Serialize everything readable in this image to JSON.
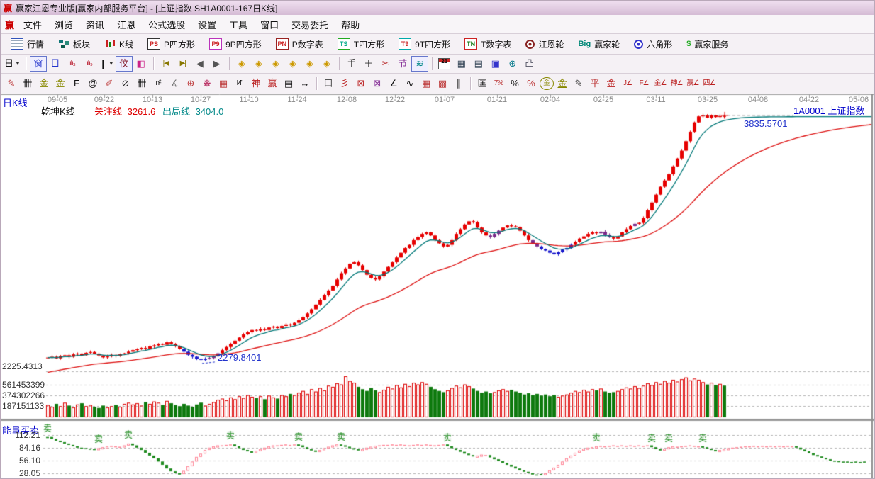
{
  "window": {
    "title": "赢家江恩专业版[赢家内部服务平台] - [上证指数  SH1A0001-167日K线]",
    "logo": "赢"
  },
  "menu": {
    "items": [
      "文件",
      "浏览",
      "资讯",
      "江恩",
      "公式选股",
      "设置",
      "工具",
      "窗口",
      "交易委托",
      "帮助"
    ]
  },
  "toolbar_main": [
    {
      "label": "行情",
      "icon": {
        "name": "quote-grid-icon",
        "kind": "grid"
      }
    },
    {
      "label": "板块",
      "icon": {
        "name": "blocks-icon",
        "kind": "blocks"
      }
    },
    {
      "label": "K线",
      "icon": {
        "name": "kline-icon",
        "kind": "kline"
      }
    },
    {
      "label": "P四方形",
      "icon": {
        "name": "p-square-icon",
        "kind": "badge",
        "text": "PS",
        "color": "#c22",
        "border": "#333"
      }
    },
    {
      "label": "9P四方形",
      "icon": {
        "name": "p9-square-icon",
        "kind": "badge",
        "text": "P9",
        "color": "#c22",
        "border": "#b3b"
      }
    },
    {
      "label": "P数字表",
      "icon": {
        "name": "p-number-icon",
        "kind": "badge",
        "text": "PN",
        "color": "#c22",
        "border": "#922"
      }
    },
    {
      "label": "T四方形",
      "icon": {
        "name": "t-square-icon",
        "kind": "badge",
        "text": "TS",
        "color": "#0a8",
        "border": "#2a2"
      }
    },
    {
      "label": "9T四方形",
      "icon": {
        "name": "t9-square-icon",
        "kind": "badge",
        "text": "T9",
        "color": "#c22",
        "border": "#0aa"
      }
    },
    {
      "label": "T数字表",
      "icon": {
        "name": "t-number-icon",
        "kind": "badge",
        "text": "TN",
        "color": "#171",
        "border": "#c22"
      }
    },
    {
      "label": "江恩轮",
      "icon": {
        "name": "gann-wheel-icon",
        "kind": "ring",
        "color": "#822"
      }
    },
    {
      "label": "赢家轮",
      "icon": {
        "name": "winner-wheel-icon",
        "kind": "text",
        "text": "Big",
        "color": "#087"
      }
    },
    {
      "label": "六角形",
      "icon": {
        "name": "hexagon-icon",
        "kind": "ring",
        "color": "#33c"
      }
    },
    {
      "label": "赢家服务",
      "icon": {
        "name": "service-icon",
        "kind": "text",
        "text": "$",
        "color": "#2a2"
      }
    }
  ],
  "toolbar_icons": [
    {
      "name": "period-day-dropdown",
      "g": "日",
      "c": "#111",
      "dd": true
    },
    {
      "sep": true
    },
    {
      "name": "overview-icon",
      "g": "窗",
      "c": "#23c",
      "boxed": true
    },
    {
      "name": "info-list-icon",
      "g": "目",
      "c": "#23c"
    },
    {
      "name": "bars3-icon",
      "g": "ılı₃",
      "c": "#b23",
      "small": true
    },
    {
      "name": "bars9-icon",
      "g": "ılı₉",
      "c": "#b23",
      "small": true
    },
    {
      "name": "candle-style-dropdown",
      "g": "❙",
      "c": "#111",
      "dd": true
    },
    {
      "name": "qiankun-kline-icon",
      "g": "伩",
      "c": "#823",
      "boxed": true
    },
    {
      "name": "color-kline-icon",
      "g": "◧",
      "c": "#c28"
    },
    {
      "sep": true
    },
    {
      "name": "first-page-icon",
      "g": "|◀",
      "c": "#870",
      "small": true
    },
    {
      "name": "last-page-icon",
      "g": "▶|",
      "c": "#870",
      "small": true
    },
    {
      "name": "prev-page-icon",
      "g": "◀",
      "c": "#555"
    },
    {
      "name": "next-page-icon",
      "g": "▶",
      "c": "#555"
    },
    {
      "sep": true
    },
    {
      "name": "compress-left-diamond-icon",
      "g": "◈",
      "c": "#c90"
    },
    {
      "name": "compress-right-diamond-icon",
      "g": "◈",
      "c": "#c90"
    },
    {
      "name": "compress-x-diamond-icon",
      "g": "◈",
      "c": "#c90"
    },
    {
      "name": "expand-x-diamond-icon",
      "g": "◈",
      "c": "#c90"
    },
    {
      "name": "compress-y-diamond-icon",
      "g": "◈",
      "c": "#c90"
    },
    {
      "name": "expand-y-diamond-icon",
      "g": "◈",
      "c": "#c90"
    },
    {
      "sep": true
    },
    {
      "name": "drag-hand-icon",
      "g": "手",
      "c": "#333"
    },
    {
      "name": "crosshair-icon",
      "g": "＋",
      "c": "#333"
    },
    {
      "name": "cut-icon",
      "g": "✂",
      "c": "#b33"
    },
    {
      "name": "gann-tool-icon",
      "g": "节",
      "c": "#839"
    },
    {
      "name": "wave-analysis-icon",
      "g": "≋",
      "c": "#088",
      "boxed": true
    },
    {
      "sep": true
    },
    {
      "name": "calendar-icon",
      "kind": "cal",
      "text": "21"
    },
    {
      "name": "calculator-icon",
      "g": "▦",
      "c": "#345"
    },
    {
      "name": "report-icon",
      "g": "▤",
      "c": "#345"
    },
    {
      "name": "save-icon",
      "g": "▣",
      "c": "#33c"
    },
    {
      "name": "network-icon",
      "g": "⊕",
      "c": "#078"
    },
    {
      "name": "print-icon",
      "g": "凸",
      "c": "#556"
    }
  ],
  "toolbar_draw": [
    {
      "name": "pen-tool-icon",
      "g": "✎",
      "c": "#b33"
    },
    {
      "name": "tick-ruler-icon",
      "g": "卌",
      "c": "#111"
    },
    {
      "name": "gold-ruler-icon",
      "g": "金",
      "c": "#880"
    },
    {
      "name": "gold-ruler2-icon",
      "g": "金",
      "c": "#880"
    },
    {
      "name": "f-ruler-icon",
      "g": "F",
      "c": "#111"
    },
    {
      "name": "spiral-icon",
      "g": "@",
      "c": "#111"
    },
    {
      "name": "marker-pen-icon",
      "g": "✐",
      "c": "#b33"
    },
    {
      "name": "cycle-ruler-icon",
      "g": "⊘",
      "c": "#111"
    },
    {
      "name": "tick-ruler2-icon",
      "g": "卌",
      "c": "#111"
    },
    {
      "name": "n-square-icon",
      "g": "n²",
      "c": "#111",
      "small": true
    },
    {
      "name": "angle-ruler-icon",
      "g": "∡",
      "c": "#777"
    },
    {
      "name": "compass-target-icon",
      "g": "⊕",
      "c": "#b33"
    },
    {
      "name": "star-burst-icon",
      "g": "❋",
      "c": "#b36"
    },
    {
      "name": "grid-star-icon",
      "g": "▦",
      "c": "#b33"
    },
    {
      "name": "wave-mark-icon",
      "g": "И\"",
      "c": "#111",
      "small": true
    },
    {
      "name": "god-line-icon",
      "g": "神",
      "c": "#b22"
    },
    {
      "name": "win-line-icon",
      "g": "赢",
      "c": "#b22"
    },
    {
      "name": "scale-123-icon",
      "g": "▤",
      "c": "#111"
    },
    {
      "name": "span-arrow-icon",
      "g": "↔",
      "c": "#111"
    },
    {
      "sep": true
    },
    {
      "name": "box-select-icon",
      "g": "口",
      "c": "#555"
    },
    {
      "name": "ray-fan-icon",
      "g": "彡",
      "c": "#b22"
    },
    {
      "name": "fan-box-icon",
      "g": "⊠",
      "c": "#b22"
    },
    {
      "name": "grid-fan-icon",
      "g": "⊠",
      "c": "#839"
    },
    {
      "name": "multi-angle-icon",
      "g": "∠",
      "c": "#111"
    },
    {
      "name": "zigzag-icon",
      "g": "∿",
      "c": "#111"
    },
    {
      "name": "red-grid-icon",
      "g": "▦",
      "c": "#b33"
    },
    {
      "name": "shift-grid-icon",
      "g": "▩",
      "c": "#b33"
    },
    {
      "name": "parallel-lines-icon",
      "g": "∥",
      "c": "#111"
    },
    {
      "sep": true
    },
    {
      "name": "level-scale-icon",
      "g": "匡",
      "c": "#111"
    },
    {
      "name": "percent-z-icon",
      "g": "7%",
      "c": "#b33",
      "small": true
    },
    {
      "name": "percent-icon",
      "g": "%",
      "c": "#111"
    },
    {
      "name": "percent-lines-icon",
      "g": "℅",
      "c": "#b33"
    },
    {
      "name": "gold-circle-icon",
      "g": "金",
      "c": "#880",
      "circled": true
    },
    {
      "name": "gold-lines-icon",
      "g": "金",
      "c": "#880",
      "underline": true
    },
    {
      "name": "dark-pen-icon",
      "g": "✎",
      "c": "#333"
    },
    {
      "name": "balance-line-icon",
      "g": "平",
      "c": "#b33"
    },
    {
      "name": "gold-mark-icon",
      "g": "金",
      "c": "#b22"
    },
    {
      "name": "j-angle-icon",
      "g": "J∠",
      "c": "#b22",
      "small": true
    },
    {
      "name": "f-angle-icon",
      "g": "F∠",
      "c": "#b22",
      "small": true
    },
    {
      "name": "gold-angle-icon",
      "g": "金∠",
      "c": "#b22",
      "small": true
    },
    {
      "name": "god-angle-icon",
      "g": "神∠",
      "c": "#b22",
      "small": true
    },
    {
      "name": "win-angle-icon",
      "g": "赢∠",
      "c": "#b22",
      "small": true
    },
    {
      "name": "four-angle-icon",
      "g": "四∠",
      "c": "#b22",
      "small": true
    }
  ],
  "chart_header": {
    "period_label": "日K线",
    "kline_name": "乾坤K线",
    "attention_line": "关注线=3261.6",
    "exit_line": "出局线=3404.0",
    "symbol_label": "1A0001 上证指数",
    "peak_price": "3835.5701",
    "low_price": "2279.8401",
    "price_axis_min": "2225.4313",
    "volume_axis": [
      "561453399",
      "374302266",
      "187151133"
    ],
    "indicator_name": "能量买卖",
    "indicator_axis": [
      "112.21",
      "84.16",
      "56.10",
      "28.05"
    ],
    "sell_marker": "卖"
  },
  "chart_data": {
    "type": "candlestick",
    "title": "上证指数 SH1A0001 167日K线",
    "dates": [
      [
        "09-05",
        80
      ],
      [
        "09-22",
        146
      ],
      [
        "10-13",
        214
      ],
      [
        "10-27",
        282
      ],
      [
        "11-10",
        350
      ],
      [
        "11-24",
        418
      ],
      [
        "12-08",
        488
      ],
      [
        "12-22",
        556
      ],
      [
        "01-07",
        626
      ],
      [
        "01-21",
        700
      ],
      [
        "02-04",
        775
      ],
      [
        "02-25",
        850
      ],
      [
        "03-11",
        924
      ],
      [
        "03-25",
        997
      ],
      [
        "04-08",
        1068
      ],
      [
        "04-22",
        1140
      ],
      [
        "05-06",
        1210
      ]
    ],
    "first_open": 2290,
    "closes": [
      2295,
      2300,
      2290,
      2305,
      2310,
      2300,
      2315,
      2320,
      2310,
      2325,
      2330,
      2320,
      2308,
      2296,
      2302,
      2312,
      2306,
      2316,
      2322,
      2332,
      2342,
      2348,
      2356,
      2350,
      2366,
      2372,
      2382,
      2376,
      2392,
      2382,
      2368,
      2350,
      2332,
      2312,
      2300,
      2286,
      2280,
      2286,
      2292,
      2302,
      2322,
      2342,
      2362,
      2382,
      2402,
      2422,
      2442,
      2456,
      2470,
      2466,
      2476,
      2470,
      2486,
      2492,
      2482,
      2496,
      2506,
      2500,
      2516,
      2532,
      2552,
      2576,
      2602,
      2632,
      2662,
      2692,
      2722,
      2752,
      2792,
      2832,
      2862,
      2892,
      2902,
      2882,
      2852,
      2822,
      2802,
      2792,
      2812,
      2842,
      2872,
      2902,
      2932,
      2962,
      2992,
      3012,
      3042,
      3062,
      3082,
      3092,
      3072,
      3042,
      3022,
      3002,
      3012,
      3042,
      3082,
      3112,
      3142,
      3162,
      3156,
      3122,
      3092,
      3072,
      3062,
      3082,
      3102,
      3122,
      3136,
      3130,
      3126,
      3102,
      3072,
      3042,
      3022,
      3002,
      2986,
      2976,
      2962,
      2952,
      2966,
      2982,
      2992,
      3012,
      3032,
      3052,
      3066,
      3082,
      3092,
      3086,
      3096,
      3076,
      3062,
      3052,
      3066,
      3092,
      3112,
      3132,
      3146,
      3152,
      3182,
      3232,
      3282,
      3332,
      3382,
      3422,
      3462,
      3512,
      3562,
      3612,
      3672,
      3732,
      3792,
      3830,
      3836,
      3822,
      3836,
      3826,
      3832,
      3828
    ],
    "candle_colors": "rrrrrrrrrrrrrrrrrrrrrrrrrrrrrrrrbbbbbbppprrrrrrrrrrrrrrrrrrrrrrrrrrrrrrrrrrrrrrrrrrrrrrrrrrrrrrrrrrrrrrrppprrrrrrrppbbbbbbbbrrrrrrppprrrrrprrrrrrrrrrrrrrrrrrrrrr",
    "colors_map": {
      "r": "#e60000",
      "b": "#1a1acc",
      "p": "#7a2a8a"
    },
    "ma_fast_color": "#007878",
    "ma_slow_color": "#dd1111",
    "volume_millions": [
      210,
      180,
      230,
      190,
      250,
      200,
      170,
      220,
      240,
      190,
      210,
      180,
      160,
      200,
      170,
      190,
      210,
      180,
      230,
      250,
      220,
      240,
      200,
      260,
      230,
      270,
      250,
      210,
      280,
      240,
      210,
      190,
      230,
      200,
      180,
      220,
      250,
      200,
      230,
      260,
      300,
      320,
      290,
      340,
      310,
      360,
      330,
      380,
      350,
      330,
      360,
      310,
      370,
      340,
      320,
      380,
      360,
      400,
      380,
      420,
      450,
      400,
      480,
      440,
      500,
      460,
      540,
      520,
      580,
      560,
      700,
      620,
      590,
      520,
      480,
      450,
      500,
      460,
      430,
      470,
      520,
      490,
      550,
      510,
      570,
      530,
      590,
      560,
      600,
      570,
      520,
      480,
      450,
      430,
      460,
      500,
      540,
      510,
      560,
      530,
      490,
      450,
      420,
      440,
      410,
      430,
      460,
      480,
      450,
      470,
      440,
      420,
      390,
      410,
      380,
      400,
      370,
      390,
      360,
      380,
      350,
      370,
      390,
      420,
      450,
      430,
      470,
      440,
      480,
      460,
      490,
      440,
      420,
      430,
      450,
      480,
      510,
      490,
      530,
      500,
      540,
      580,
      550,
      600,
      570,
      620,
      590,
      640,
      610,
      650,
      680,
      630,
      660,
      640,
      600,
      560,
      590,
      550,
      570,
      540
    ],
    "volume_axis_values": [
      561453399,
      374302266,
      187151133
    ],
    "price_axis": {
      "min": 2225.4313,
      "peak": 3835.5701,
      "low_label": 2279.8401
    },
    "indicator": {
      "name": "能量买卖",
      "range": [
        28.05,
        112.21
      ],
      "values": [
        108,
        104,
        100,
        97,
        94,
        91,
        88,
        86,
        85,
        84,
        83,
        82,
        84,
        86,
        88,
        89,
        88,
        87,
        90,
        94,
        90,
        85,
        80,
        74,
        68,
        62,
        55,
        48,
        40,
        34,
        30,
        28,
        35,
        45,
        55,
        65,
        72,
        80,
        85,
        88,
        90,
        90,
        91,
        92,
        88,
        84,
        80,
        77,
        75,
        78,
        82,
        85,
        88,
        90,
        90,
        91,
        92,
        91,
        92,
        90,
        86,
        82,
        79,
        77,
        80,
        84,
        87,
        90,
        92,
        90,
        87,
        84,
        82,
        80,
        82,
        85,
        87,
        89,
        90,
        91,
        91,
        92,
        91,
        92,
        91,
        90,
        91,
        92,
        91,
        92,
        91,
        90,
        91,
        92,
        88,
        84,
        80,
        76,
        72,
        69,
        66,
        68,
        70,
        69,
        64,
        60,
        56,
        52,
        48,
        44,
        40,
        36,
        33,
        30,
        28,
        27,
        28,
        30,
        36,
        42,
        48,
        55,
        62,
        68,
        74,
        79,
        83,
        85,
        86,
        88,
        89,
        88,
        89,
        90,
        89,
        90,
        89,
        90,
        89,
        90,
        89,
        90,
        86,
        82,
        80,
        83,
        86,
        88,
        87,
        88,
        89,
        90,
        89,
        88,
        86,
        83,
        80,
        78,
        80,
        82,
        84,
        85,
        86,
        87,
        88,
        88,
        89,
        88,
        89,
        88,
        89,
        88,
        89,
        88,
        89,
        88,
        85,
        81,
        77,
        73,
        69,
        66,
        63,
        60,
        58,
        57,
        56,
        55,
        55,
        54,
        55,
        54,
        55
      ],
      "sell_indices": [
        0,
        12,
        19,
        43,
        59,
        69,
        94,
        129,
        142,
        146,
        154
      ],
      "up_color": "#ff8899",
      "down_color": "#1e8a1e"
    }
  }
}
